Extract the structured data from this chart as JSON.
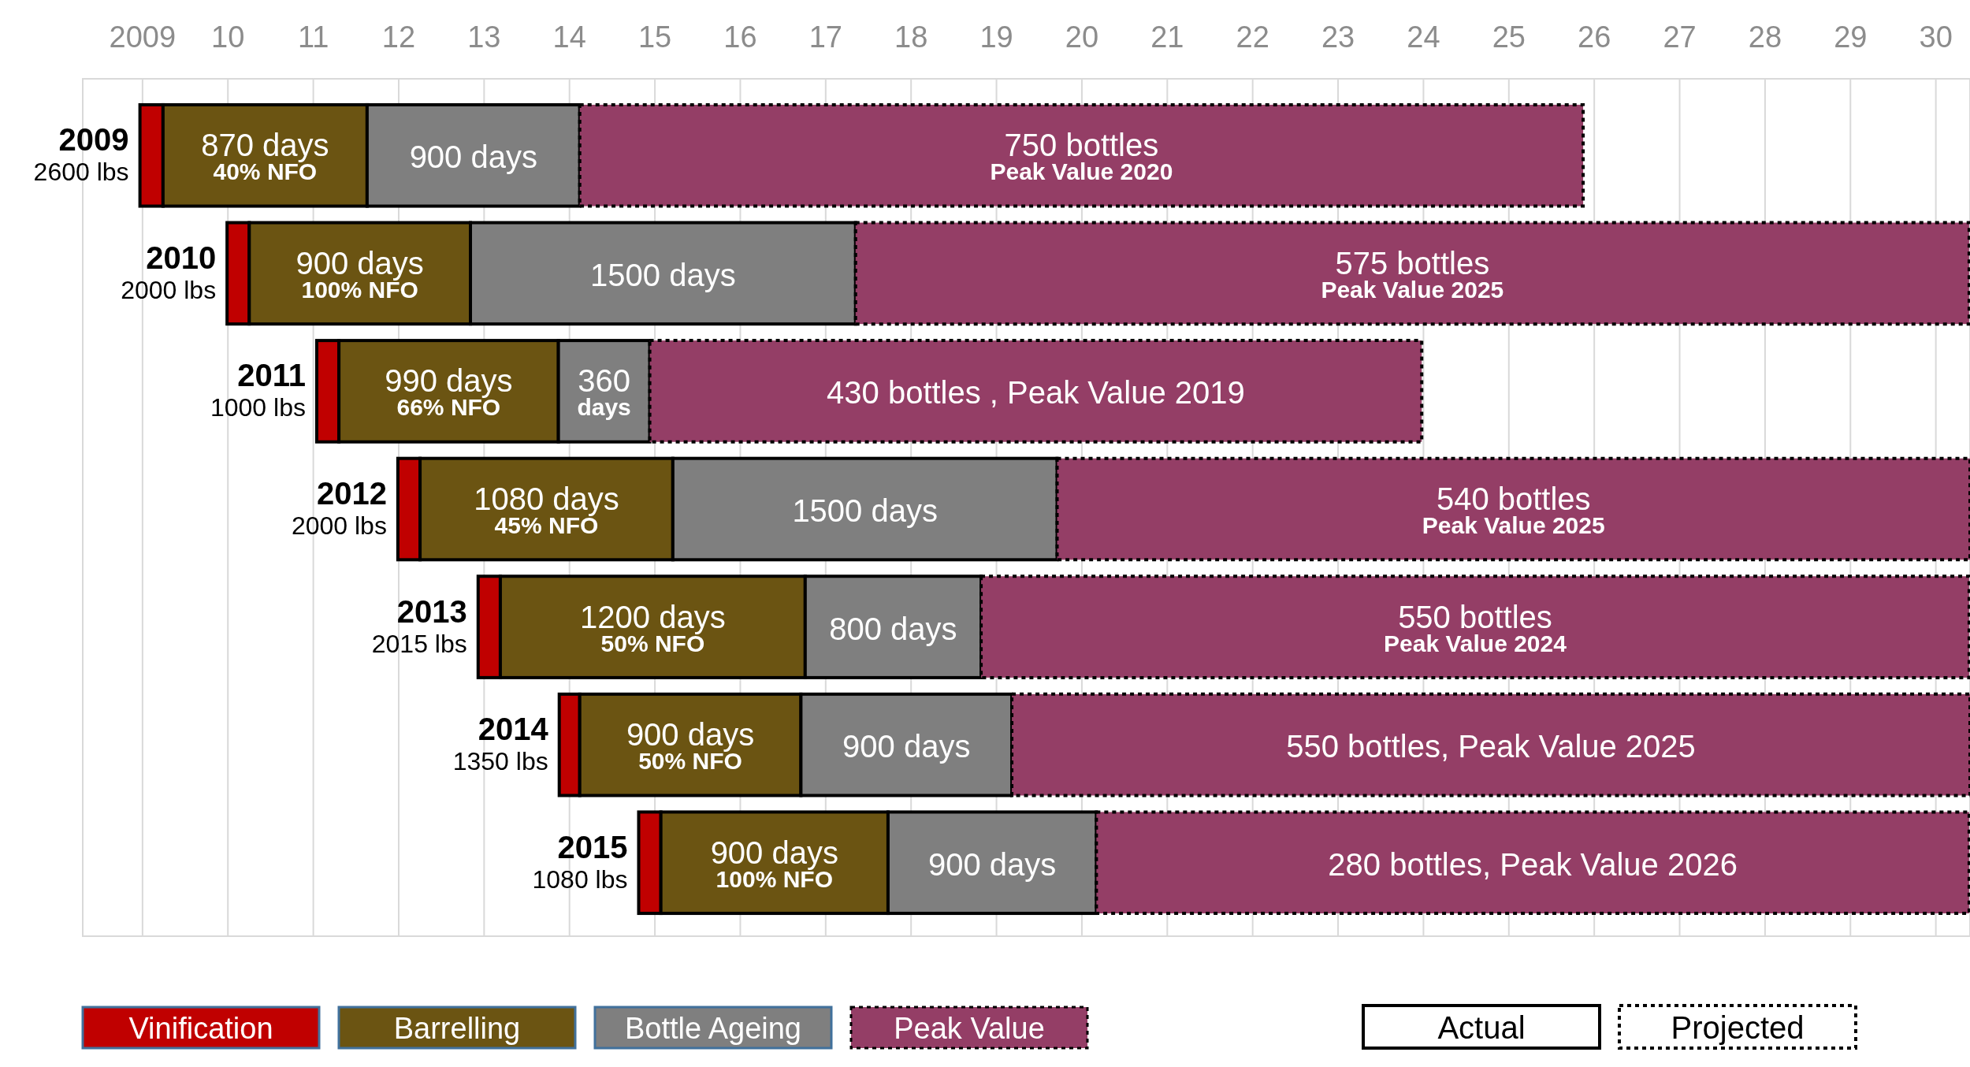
{
  "chart_data": {
    "type": "bar",
    "orientation": "horizontal",
    "categories": [
      "2009\n2600 lbs",
      "2010\n2000 lbs",
      "2011\n1000 lbs",
      "2012\n2000 lbs",
      "2013\n2015 lbs",
      "2014\n1350 lbs",
      "2015\n1080 lbs"
    ],
    "series": [
      {
        "name": "Vinification",
        "color": "#c00000",
        "base": [
          2008.97,
          2009.99,
          2011.04,
          2011.99,
          2012.93,
          2013.88,
          2014.81
        ],
        "values": [
          0.27,
          0.26,
          0.26,
          0.26,
          0.26,
          0.24,
          0.26
        ]
      },
      {
        "name": "Barrelling",
        "color": "#6b5412",
        "base": [
          2009.24,
          2010.25,
          2011.3,
          2012.25,
          2013.19,
          2014.12,
          2015.07
        ],
        "values": [
          2.39,
          2.59,
          2.57,
          2.96,
          3.57,
          2.59,
          2.66
        ]
      },
      {
        "name": "Bottle Ageing",
        "color": "#7f7f7f",
        "base": [
          2011.63,
          2012.84,
          2013.87,
          2015.21,
          2016.76,
          2016.71,
          2017.73
        ],
        "values": [
          2.49,
          4.51,
          1.07,
          4.5,
          2.06,
          2.47,
          2.44
        ]
      },
      {
        "name": "Peak Value",
        "color": "#943e66",
        "line_style": "dotted",
        "base": [
          2014.12,
          2017.35,
          2014.94,
          2019.71,
          2018.82,
          2019.18,
          2020.17
        ],
        "values": [
          11.75,
          13.04,
          9.04,
          10.69,
          11.57,
          11.22,
          10.22
        ]
      }
    ],
    "xlim": [
      2008.3,
      2030.4
    ],
    "xticks": [
      2009,
      {
        "value": 2010,
        "label": "10"
      },
      {
        "value": 2011,
        "label": "11"
      },
      {
        "value": 2012,
        "label": "12"
      },
      {
        "value": 2013,
        "label": "13"
      },
      {
        "value": 2014,
        "label": "14"
      },
      {
        "value": 2015,
        "label": "15"
      },
      {
        "value": 2016,
        "label": "16"
      },
      {
        "value": 2017,
        "label": "17"
      },
      {
        "value": 2018,
        "label": "18"
      },
      {
        "value": 2019,
        "label": "19"
      },
      {
        "value": 2020,
        "label": "20"
      },
      {
        "value": 2021,
        "label": "21"
      },
      {
        "value": 2022,
        "label": "22"
      },
      {
        "value": 2023,
        "label": "23"
      },
      {
        "value": 2024,
        "label": "24"
      },
      {
        "value": 2025,
        "label": "25"
      },
      {
        "value": 2026,
        "label": "26"
      },
      {
        "value": 2027,
        "label": "27"
      },
      {
        "value": 2028,
        "label": "28"
      },
      {
        "value": 2029,
        "label": "29"
      },
      {
        "value": 2030,
        "label": "30"
      }
    ],
    "grid": "x",
    "legend": "bottom",
    "annotations": [
      "870 days\n40% NFO",
      "900 days",
      "750 bottles\nPeak Value 2020",
      "900 days\n100% NFO",
      "1500 days",
      "575 bottles\nPeak Value 2025",
      "990 days\n66% NFO",
      "360\ndays",
      "430 bottles , Peak Value 2019",
      "1080 days\n45% NFO",
      "1500 days",
      "540 bottles\nPeak Value 2025",
      "1200 days\n50% NFO",
      "800 days",
      "550 bottles\nPeak Value 2024",
      "900 days\n50% NFO",
      "900 days",
      "550 bottles, Peak Value 2025",
      "900 days\n100% NFO",
      "900 days",
      "280 bottles, Peak Value 2026",
      "Actual",
      "Projected"
    ]
  }
}
